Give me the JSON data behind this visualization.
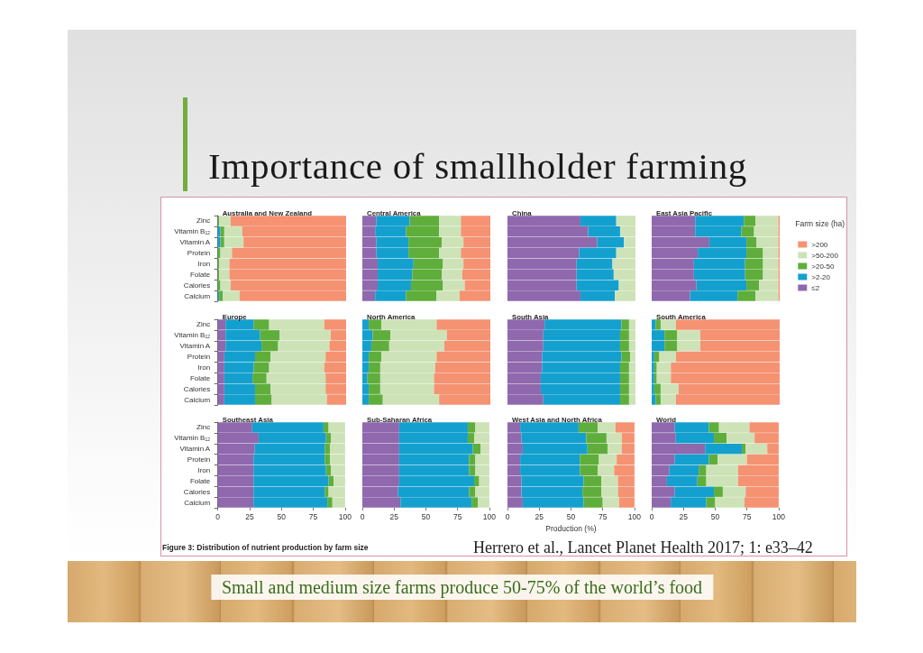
{
  "chart_data": [
    {
      "type": "other",
      "title": "Importance of smallholder farming",
      "annotations": [
        "Small and medium size farms produce 50-75% of the world’s food",
        "Figure 3: Distribution of nutrient production by farm size",
        "Herrero et al., Lancet Planet Health 2017; 1: e33–42"
      ]
    },
    {
      "type": "bar",
      "title": "Australia and New Zealand",
      "orientation": "horizontal",
      "stacked": true,
      "categories": [
        "Zinc",
        "Vitamin B₁₂",
        "Vitamin A",
        "Protein",
        "Iron",
        "Folate",
        "Calories",
        "Calcium"
      ],
      "xlim": [
        0,
        100
      ],
      "xticks": [
        0,
        25,
        50,
        75,
        100
      ],
      "tick_labels": "y",
      "series": [
        {
          "color": "#14a0cf",
          "values": [
            0,
            2,
            2,
            0,
            0,
            0,
            0,
            1
          ]
        },
        {
          "color": "#5fae3c",
          "values": [
            1,
            3,
            3,
            2,
            1,
            1,
            2,
            3
          ]
        },
        {
          "color": "#cde3b7",
          "values": [
            9,
            14,
            15,
            9,
            8,
            8,
            8,
            13
          ]
        },
        {
          "color": "#f59272",
          "values": [
            90,
            81,
            80,
            89,
            91,
            91,
            90,
            83
          ]
        }
      ]
    },
    {
      "type": "bar",
      "title": "Central America",
      "orientation": "horizontal",
      "stacked": true,
      "categories": [
        "Zinc",
        "Vitamin B₁₂",
        "Vitamin A",
        "Protein",
        "Iron",
        "Folate",
        "Calories",
        "Calcium"
      ],
      "xlim": [
        0,
        100
      ],
      "xticks": [
        0,
        25,
        50,
        75,
        100
      ],
      "tick_labels": false,
      "series": [
        {
          "color": "#8f68ad",
          "values": [
            11,
            10,
            11,
            11,
            12,
            12,
            12,
            10
          ]
        },
        {
          "color": "#14a0cf",
          "values": [
            26,
            24,
            25,
            25,
            28,
            27,
            26,
            24
          ]
        },
        {
          "color": "#5fae3c",
          "values": [
            23,
            26,
            26,
            24,
            23,
            23,
            25,
            24
          ]
        },
        {
          "color": "#cde3b7",
          "values": [
            17,
            17,
            17,
            17,
            16,
            16,
            17,
            18
          ]
        },
        {
          "color": "#f59272",
          "values": [
            23,
            23,
            21,
            23,
            21,
            22,
            20,
            24
          ]
        }
      ]
    },
    {
      "type": "bar",
      "title": "China",
      "orientation": "horizontal",
      "stacked": true,
      "categories": [
        "Zinc",
        "Vitamin B₁₂",
        "Vitamin A",
        "Protein",
        "Iron",
        "Folate",
        "Calories",
        "Calcium"
      ],
      "xlim": [
        0,
        100
      ],
      "xticks": [
        0,
        25,
        50,
        75,
        100
      ],
      "tick_labels": false,
      "series": [
        {
          "color": "#8f68ad",
          "values": [
            57,
            63,
            70,
            56,
            54,
            54,
            54,
            57
          ]
        },
        {
          "color": "#14a0cf",
          "values": [
            28,
            25,
            21,
            29,
            28,
            29,
            33,
            27
          ]
        },
        {
          "color": "#cde3b7",
          "values": [
            15,
            12,
            9,
            15,
            18,
            17,
            13,
            16
          ]
        }
      ]
    },
    {
      "type": "bar",
      "title": "East Asia Pacific",
      "orientation": "horizontal",
      "stacked": true,
      "categories": [
        "Zinc",
        "Vitamin B₁₂",
        "Vitamin A",
        "Protein",
        "Iron",
        "Folate",
        "Calories",
        "Calcium"
      ],
      "xlim": [
        0,
        100
      ],
      "xticks": [
        0,
        25,
        50,
        75,
        100
      ],
      "tick_labels": false,
      "legend": "right",
      "legend_title": "Farm size (ha)",
      "series": [
        {
          "name": "≤2",
          "color": "#8f68ad",
          "values": [
            34,
            34,
            45,
            36,
            33,
            33,
            35,
            30
          ]
        },
        {
          "name": ">2-20",
          "color": "#14a0cf",
          "values": [
            38,
            36,
            29,
            38,
            40,
            40,
            39,
            37
          ]
        },
        {
          "name": ">20-50",
          "color": "#5fae3c",
          "values": [
            9,
            10,
            8,
            13,
            14,
            14,
            10,
            14
          ]
        },
        {
          "name": ">50-200",
          "color": "#cde3b7",
          "values": [
            18,
            19,
            17,
            12,
            12,
            12,
            15,
            18
          ]
        },
        {
          "name": ">200",
          "color": "#f59272",
          "values": [
            1,
            1,
            1,
            1,
            1,
            1,
            1,
            1
          ]
        }
      ]
    },
    {
      "type": "bar",
      "title": "Europe",
      "orientation": "horizontal",
      "stacked": true,
      "categories": [
        "Zinc",
        "Vitamin B₁₂",
        "Vitamin A",
        "Protein",
        "Iron",
        "Folate",
        "Calories",
        "Calcium"
      ],
      "xlim": [
        0,
        100
      ],
      "xticks": [
        0,
        25,
        50,
        75,
        100
      ],
      "tick_labels": "y",
      "series": [
        {
          "color": "#8f68ad",
          "values": [
            6,
            6,
            6,
            5,
            5,
            5,
            5,
            5
          ]
        },
        {
          "color": "#14a0cf",
          "values": [
            22,
            27,
            28,
            24,
            23,
            22,
            24,
            24
          ]
        },
        {
          "color": "#5fae3c",
          "values": [
            12,
            15,
            13,
            12,
            12,
            11,
            12,
            13
          ]
        },
        {
          "color": "#cde3b7",
          "values": [
            43,
            40,
            40,
            43,
            43,
            46,
            43,
            43
          ]
        },
        {
          "color": "#f59272",
          "values": [
            17,
            12,
            13,
            16,
            17,
            16,
            16,
            15
          ]
        }
      ]
    },
    {
      "type": "bar",
      "title": "North America",
      "orientation": "horizontal",
      "stacked": true,
      "categories": [
        "Zinc",
        "Vitamin B₁₂",
        "Vitamin A",
        "Protein",
        "Iron",
        "Folate",
        "Calories",
        "Calcium"
      ],
      "xlim": [
        0,
        100
      ],
      "xticks": [
        0,
        25,
        50,
        75,
        100
      ],
      "tick_labels": false,
      "series": [
        {
          "color": "#14a0cf",
          "values": [
            5,
            8,
            7,
            5,
            5,
            4,
            5,
            5
          ]
        },
        {
          "color": "#5fae3c",
          "values": [
            10,
            14,
            14,
            10,
            9,
            10,
            9,
            11
          ]
        },
        {
          "color": "#cde3b7",
          "values": [
            43,
            44,
            43,
            43,
            43,
            42,
            42,
            44
          ]
        },
        {
          "color": "#f59272",
          "values": [
            42,
            34,
            36,
            42,
            43,
            44,
            44,
            40
          ]
        }
      ]
    },
    {
      "type": "bar",
      "title": "South Asia",
      "orientation": "horizontal",
      "stacked": true,
      "categories": [
        "Zinc",
        "Vitamin B₁₂",
        "Vitamin A",
        "Protein",
        "Iron",
        "Folate",
        "Calories",
        "Calcium"
      ],
      "xlim": [
        0,
        100
      ],
      "xticks": [
        0,
        25,
        50,
        75,
        100
      ],
      "tick_labels": false,
      "series": [
        {
          "color": "#8f68ad",
          "values": [
            29,
            28,
            28,
            27,
            27,
            26,
            26,
            28
          ]
        },
        {
          "color": "#14a0cf",
          "values": [
            60,
            60,
            60,
            62,
            61,
            62,
            62,
            60
          ]
        },
        {
          "color": "#5fae3c",
          "values": [
            6,
            7,
            7,
            7,
            7,
            7,
            7,
            7
          ]
        },
        {
          "color": "#cde3b7",
          "values": [
            5,
            5,
            5,
            4,
            5,
            5,
            5,
            5
          ]
        }
      ]
    },
    {
      "type": "bar",
      "title": "South America",
      "orientation": "horizontal",
      "stacked": true,
      "categories": [
        "Zinc",
        "Vitamin B₁₂",
        "Vitamin A",
        "Protein",
        "Iron",
        "Folate",
        "Calories",
        "Calcium"
      ],
      "xlim": [
        0,
        100
      ],
      "xticks": [
        0,
        25,
        50,
        75,
        100
      ],
      "tick_labels": false,
      "series": [
        {
          "color": "#14a0cf",
          "values": [
            3,
            10,
            10,
            2,
            2,
            2,
            2,
            3
          ]
        },
        {
          "color": "#5fae3c",
          "values": [
            4,
            10,
            10,
            4,
            2,
            2,
            5,
            4
          ]
        },
        {
          "color": "#cde3b7",
          "values": [
            12,
            18,
            18,
            13,
            11,
            11,
            14,
            12
          ]
        },
        {
          "color": "#f59272",
          "values": [
            81,
            62,
            62,
            81,
            85,
            85,
            79,
            81
          ]
        }
      ]
    },
    {
      "type": "bar",
      "title": "Southeast Asia",
      "orientation": "horizontal",
      "stacked": true,
      "categories": [
        "Zinc",
        "Vitamin B₁₂",
        "Vitamin A",
        "Protein",
        "Iron",
        "Folate",
        "Calories",
        "Calcium"
      ],
      "xlim": [
        0,
        100
      ],
      "xticks": [
        0,
        25,
        50,
        75,
        100
      ],
      "series": [
        {
          "color": "#8f68ad",
          "values": [
            27,
            32,
            29,
            28,
            28,
            28,
            28,
            28
          ]
        },
        {
          "color": "#14a0cf",
          "values": [
            56,
            53,
            55,
            56,
            57,
            59,
            56,
            58
          ]
        },
        {
          "color": "#5fae3c",
          "values": [
            4,
            4,
            4,
            4,
            4,
            4,
            3,
            4
          ]
        },
        {
          "color": "#cde3b7",
          "values": [
            13,
            11,
            12,
            12,
            11,
            9,
            13,
            10
          ]
        }
      ]
    },
    {
      "type": "bar",
      "title": "Sub-Saharan Africa",
      "orientation": "horizontal",
      "stacked": true,
      "categories": [
        "Zinc",
        "Vitamin B₁₂",
        "Vitamin A",
        "Protein",
        "Iron",
        "Folate",
        "Calories",
        "Calcium"
      ],
      "xlim": [
        0,
        100
      ],
      "xticks": [
        0,
        25,
        50,
        75,
        100
      ],
      "tick_labels": "x",
      "series": [
        {
          "color": "#8f68ad",
          "values": [
            29,
            29,
            29,
            29,
            29,
            29,
            28,
            30
          ]
        },
        {
          "color": "#14a0cf",
          "values": [
            54,
            54,
            58,
            55,
            55,
            59,
            56,
            56
          ]
        },
        {
          "color": "#5fae3c",
          "values": [
            6,
            5,
            6,
            5,
            5,
            4,
            5,
            5
          ]
        },
        {
          "color": "#cde3b7",
          "values": [
            11,
            12,
            7,
            11,
            11,
            8,
            11,
            9
          ]
        }
      ]
    },
    {
      "type": "bar",
      "title": "West Asia and North Africa",
      "orientation": "horizontal",
      "stacked": true,
      "categories": [
        "Zinc",
        "Vitamin B₁₂",
        "Vitamin A",
        "Protein",
        "Iron",
        "Folate",
        "Calories",
        "Calcium"
      ],
      "xlim": [
        0,
        100
      ],
      "xticks": [
        0,
        25,
        50,
        75,
        100
      ],
      "tick_labels": "x",
      "xlabel": "Production (%)",
      "series": [
        {
          "color": "#8f68ad",
          "values": [
            10,
            11,
            12,
            10,
            10,
            11,
            11,
            12
          ]
        },
        {
          "color": "#14a0cf",
          "values": [
            46,
            51,
            51,
            47,
            47,
            49,
            48,
            48
          ]
        },
        {
          "color": "#5fae3c",
          "values": [
            15,
            16,
            16,
            15,
            14,
            14,
            15,
            15
          ]
        },
        {
          "color": "#cde3b7",
          "values": [
            14,
            12,
            11,
            14,
            13,
            13,
            13,
            13
          ]
        },
        {
          "color": "#f59272",
          "values": [
            15,
            10,
            10,
            14,
            16,
            13,
            13,
            12
          ]
        }
      ]
    },
    {
      "type": "bar",
      "title": "World",
      "orientation": "horizontal",
      "stacked": true,
      "categories": [
        "Zinc",
        "Vitamin B₁₂",
        "Vitamin A",
        "Protein",
        "Iron",
        "Folate",
        "Calories",
        "Calcium"
      ],
      "xlim": [
        0,
        100
      ],
      "xticks": [
        0,
        25,
        50,
        75,
        100
      ],
      "tick_labels": "x",
      "series": [
        {
          "color": "#8f68ad",
          "values": [
            18,
            19,
            42,
            18,
            14,
            12,
            18,
            15
          ]
        },
        {
          "color": "#14a0cf",
          "values": [
            27,
            30,
            29,
            27,
            23,
            24,
            31,
            28
          ]
        },
        {
          "color": "#5fae3c",
          "values": [
            8,
            10,
            3,
            7,
            6,
            7,
            7,
            7
          ]
        },
        {
          "color": "#cde3b7",
          "values": [
            24,
            22,
            17,
            23,
            25,
            25,
            18,
            23
          ]
        },
        {
          "color": "#f59272",
          "values": [
            23,
            19,
            9,
            25,
            32,
            32,
            26,
            27
          ]
        }
      ]
    }
  ]
}
